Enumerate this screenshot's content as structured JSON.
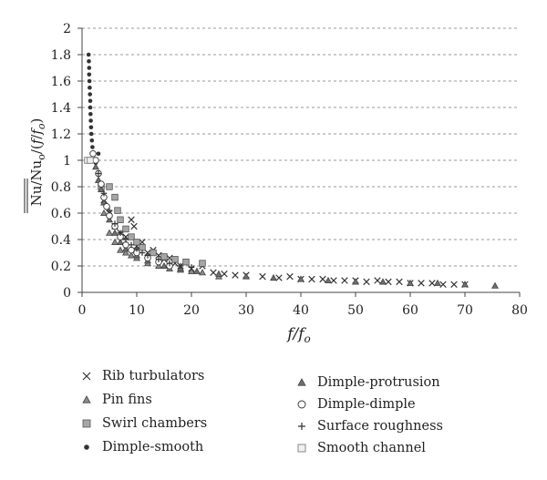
{
  "chart_data": {
    "type": "scatter",
    "title": "",
    "xlabel": "f/f_o",
    "ylabel": "Nu/Nu_o/(f/f_o)",
    "xlim": [
      0,
      80
    ],
    "ylim": [
      0,
      2
    ],
    "x_ticks": [
      0,
      10,
      20,
      30,
      40,
      50,
      60,
      70,
      80
    ],
    "y_ticks": [
      0,
      0.2,
      0.4,
      0.6,
      0.8,
      1,
      1.2,
      1.4,
      1.6,
      1.8,
      2
    ],
    "x_tick_labels": [
      "0",
      "10",
      "20",
      "30",
      "40",
      "50",
      "60",
      "70",
      "80"
    ],
    "y_tick_labels": [
      "0",
      "0.2",
      "0.4",
      "0.6",
      "0.8",
      "1",
      "1.2",
      "1.4",
      "1.6",
      "1.8",
      "2"
    ],
    "grid": "horizontal-dashed",
    "legend_placement": "below",
    "series": [
      {
        "name": "Rib turbulators",
        "marker": "x",
        "color": "#333333",
        "points": [
          [
            4,
            0.7
          ],
          [
            5,
            0.6
          ],
          [
            6,
            0.5
          ],
          [
            7,
            0.45
          ],
          [
            8,
            0.42
          ],
          [
            9,
            0.55
          ],
          [
            9.5,
            0.5
          ],
          [
            10,
            0.35
          ],
          [
            11,
            0.38
          ],
          [
            12,
            0.3
          ],
          [
            13,
            0.32
          ],
          [
            14,
            0.28
          ],
          [
            15,
            0.25
          ],
          [
            16,
            0.26
          ],
          [
            17,
            0.22
          ],
          [
            18,
            0.2
          ],
          [
            20,
            0.18
          ],
          [
            22,
            0.2
          ],
          [
            24,
            0.15
          ],
          [
            26,
            0.14
          ],
          [
            28,
            0.13
          ],
          [
            30,
            0.13
          ],
          [
            33,
            0.12
          ],
          [
            36,
            0.11
          ],
          [
            38,
            0.12
          ],
          [
            40,
            0.1
          ],
          [
            42,
            0.1
          ],
          [
            44,
            0.1
          ],
          [
            46,
            0.09
          ],
          [
            48,
            0.09
          ],
          [
            50,
            0.09
          ],
          [
            52,
            0.08
          ],
          [
            54,
            0.09
          ],
          [
            56,
            0.08
          ],
          [
            58,
            0.08
          ],
          [
            60,
            0.07
          ],
          [
            62,
            0.07
          ],
          [
            64,
            0.07
          ],
          [
            66,
            0.06
          ],
          [
            68,
            0.06
          ],
          [
            70,
            0.06
          ]
        ]
      },
      {
        "name": "Pin fins",
        "marker": "triangle",
        "color": "#8a8a8a",
        "points": [
          [
            3,
            0.85
          ],
          [
            4,
            0.6
          ],
          [
            5,
            0.45
          ],
          [
            6,
            0.38
          ],
          [
            7,
            0.32
          ],
          [
            8,
            0.3
          ],
          [
            9,
            0.28
          ],
          [
            10,
            0.26
          ],
          [
            12,
            0.22
          ],
          [
            14,
            0.2
          ],
          [
            16,
            0.18
          ],
          [
            18,
            0.17
          ],
          [
            20,
            0.16
          ],
          [
            22,
            0.15
          ],
          [
            25,
            0.12
          ]
        ]
      },
      {
        "name": "Swirl chambers",
        "marker": "square",
        "color": "#a6a6a6",
        "points": [
          [
            3.5,
            0.8
          ],
          [
            5,
            0.8
          ],
          [
            6,
            0.72
          ],
          [
            6.5,
            0.62
          ],
          [
            7,
            0.55
          ],
          [
            8,
            0.48
          ],
          [
            9,
            0.42
          ],
          [
            10,
            0.38
          ],
          [
            11,
            0.34
          ],
          [
            13,
            0.3
          ],
          [
            15,
            0.27
          ],
          [
            17,
            0.25
          ],
          [
            19,
            0.23
          ],
          [
            22,
            0.22
          ]
        ]
      },
      {
        "name": "Dimple-smooth",
        "marker": "dot",
        "color": "#333333",
        "points": [
          [
            1.2,
            1.8
          ],
          [
            1.25,
            1.75
          ],
          [
            1.3,
            1.7
          ],
          [
            1.3,
            1.65
          ],
          [
            1.35,
            1.6
          ],
          [
            1.4,
            1.55
          ],
          [
            1.45,
            1.5
          ],
          [
            1.5,
            1.45
          ],
          [
            1.5,
            1.4
          ],
          [
            1.55,
            1.35
          ],
          [
            1.6,
            1.3
          ],
          [
            1.65,
            1.25
          ],
          [
            1.7,
            1.2
          ],
          [
            1.8,
            1.15
          ],
          [
            1.9,
            1.1
          ],
          [
            2,
            1.05
          ],
          [
            2.2,
            1.0
          ],
          [
            2.5,
            0.98
          ],
          [
            3,
            1.05
          ]
        ]
      },
      {
        "name": "Dimple-protrusion",
        "marker": "triangle",
        "color": "#6e6e6e",
        "points": [
          [
            2.5,
            0.95
          ],
          [
            3,
            0.85
          ],
          [
            3.5,
            0.78
          ],
          [
            4,
            0.68
          ],
          [
            5,
            0.55
          ],
          [
            6,
            0.45
          ],
          [
            7,
            0.38
          ],
          [
            8,
            0.33
          ],
          [
            10,
            0.28
          ],
          [
            12,
            0.24
          ],
          [
            15,
            0.2
          ],
          [
            18,
            0.18
          ],
          [
            21,
            0.16
          ],
          [
            25,
            0.14
          ],
          [
            30,
            0.12
          ],
          [
            35,
            0.11
          ],
          [
            40,
            0.1
          ],
          [
            45,
            0.09
          ],
          [
            50,
            0.08
          ],
          [
            55,
            0.08
          ],
          [
            60,
            0.07
          ],
          [
            65,
            0.07
          ],
          [
            70,
            0.06
          ],
          [
            75.5,
            0.05
          ]
        ]
      },
      {
        "name": "Dimple-dimple",
        "marker": "circle",
        "color": "#333333",
        "points": [
          [
            2,
            1.05
          ],
          [
            2.5,
            1.0
          ],
          [
            3,
            0.9
          ],
          [
            3.5,
            0.82
          ],
          [
            4,
            0.72
          ],
          [
            4.5,
            0.65
          ],
          [
            5,
            0.58
          ],
          [
            6,
            0.5
          ],
          [
            7,
            0.42
          ],
          [
            8,
            0.36
          ],
          [
            9,
            0.32
          ],
          [
            10,
            0.3
          ],
          [
            12,
            0.26
          ],
          [
            14,
            0.23
          ],
          [
            16,
            0.2
          ]
        ]
      },
      {
        "name": "Surface roughness",
        "marker": "plus",
        "color": "#333333",
        "points": [
          [
            3,
            0.9
          ],
          [
            4,
            0.75
          ],
          [
            5,
            0.62
          ],
          [
            6,
            0.52
          ],
          [
            7,
            0.45
          ],
          [
            8,
            0.4
          ],
          [
            9,
            0.36
          ],
          [
            10,
            0.33
          ],
          [
            11,
            0.3
          ],
          [
            12,
            0.28
          ],
          [
            14,
            0.25
          ],
          [
            16,
            0.22
          ],
          [
            18,
            0.2
          ],
          [
            20,
            0.19
          ]
        ]
      },
      {
        "name": "Smooth channel",
        "marker": "square-open",
        "color": "#8a8a8a",
        "points": [
          [
            1,
            1.0
          ],
          [
            1.5,
            1.0
          ]
        ]
      }
    ]
  }
}
